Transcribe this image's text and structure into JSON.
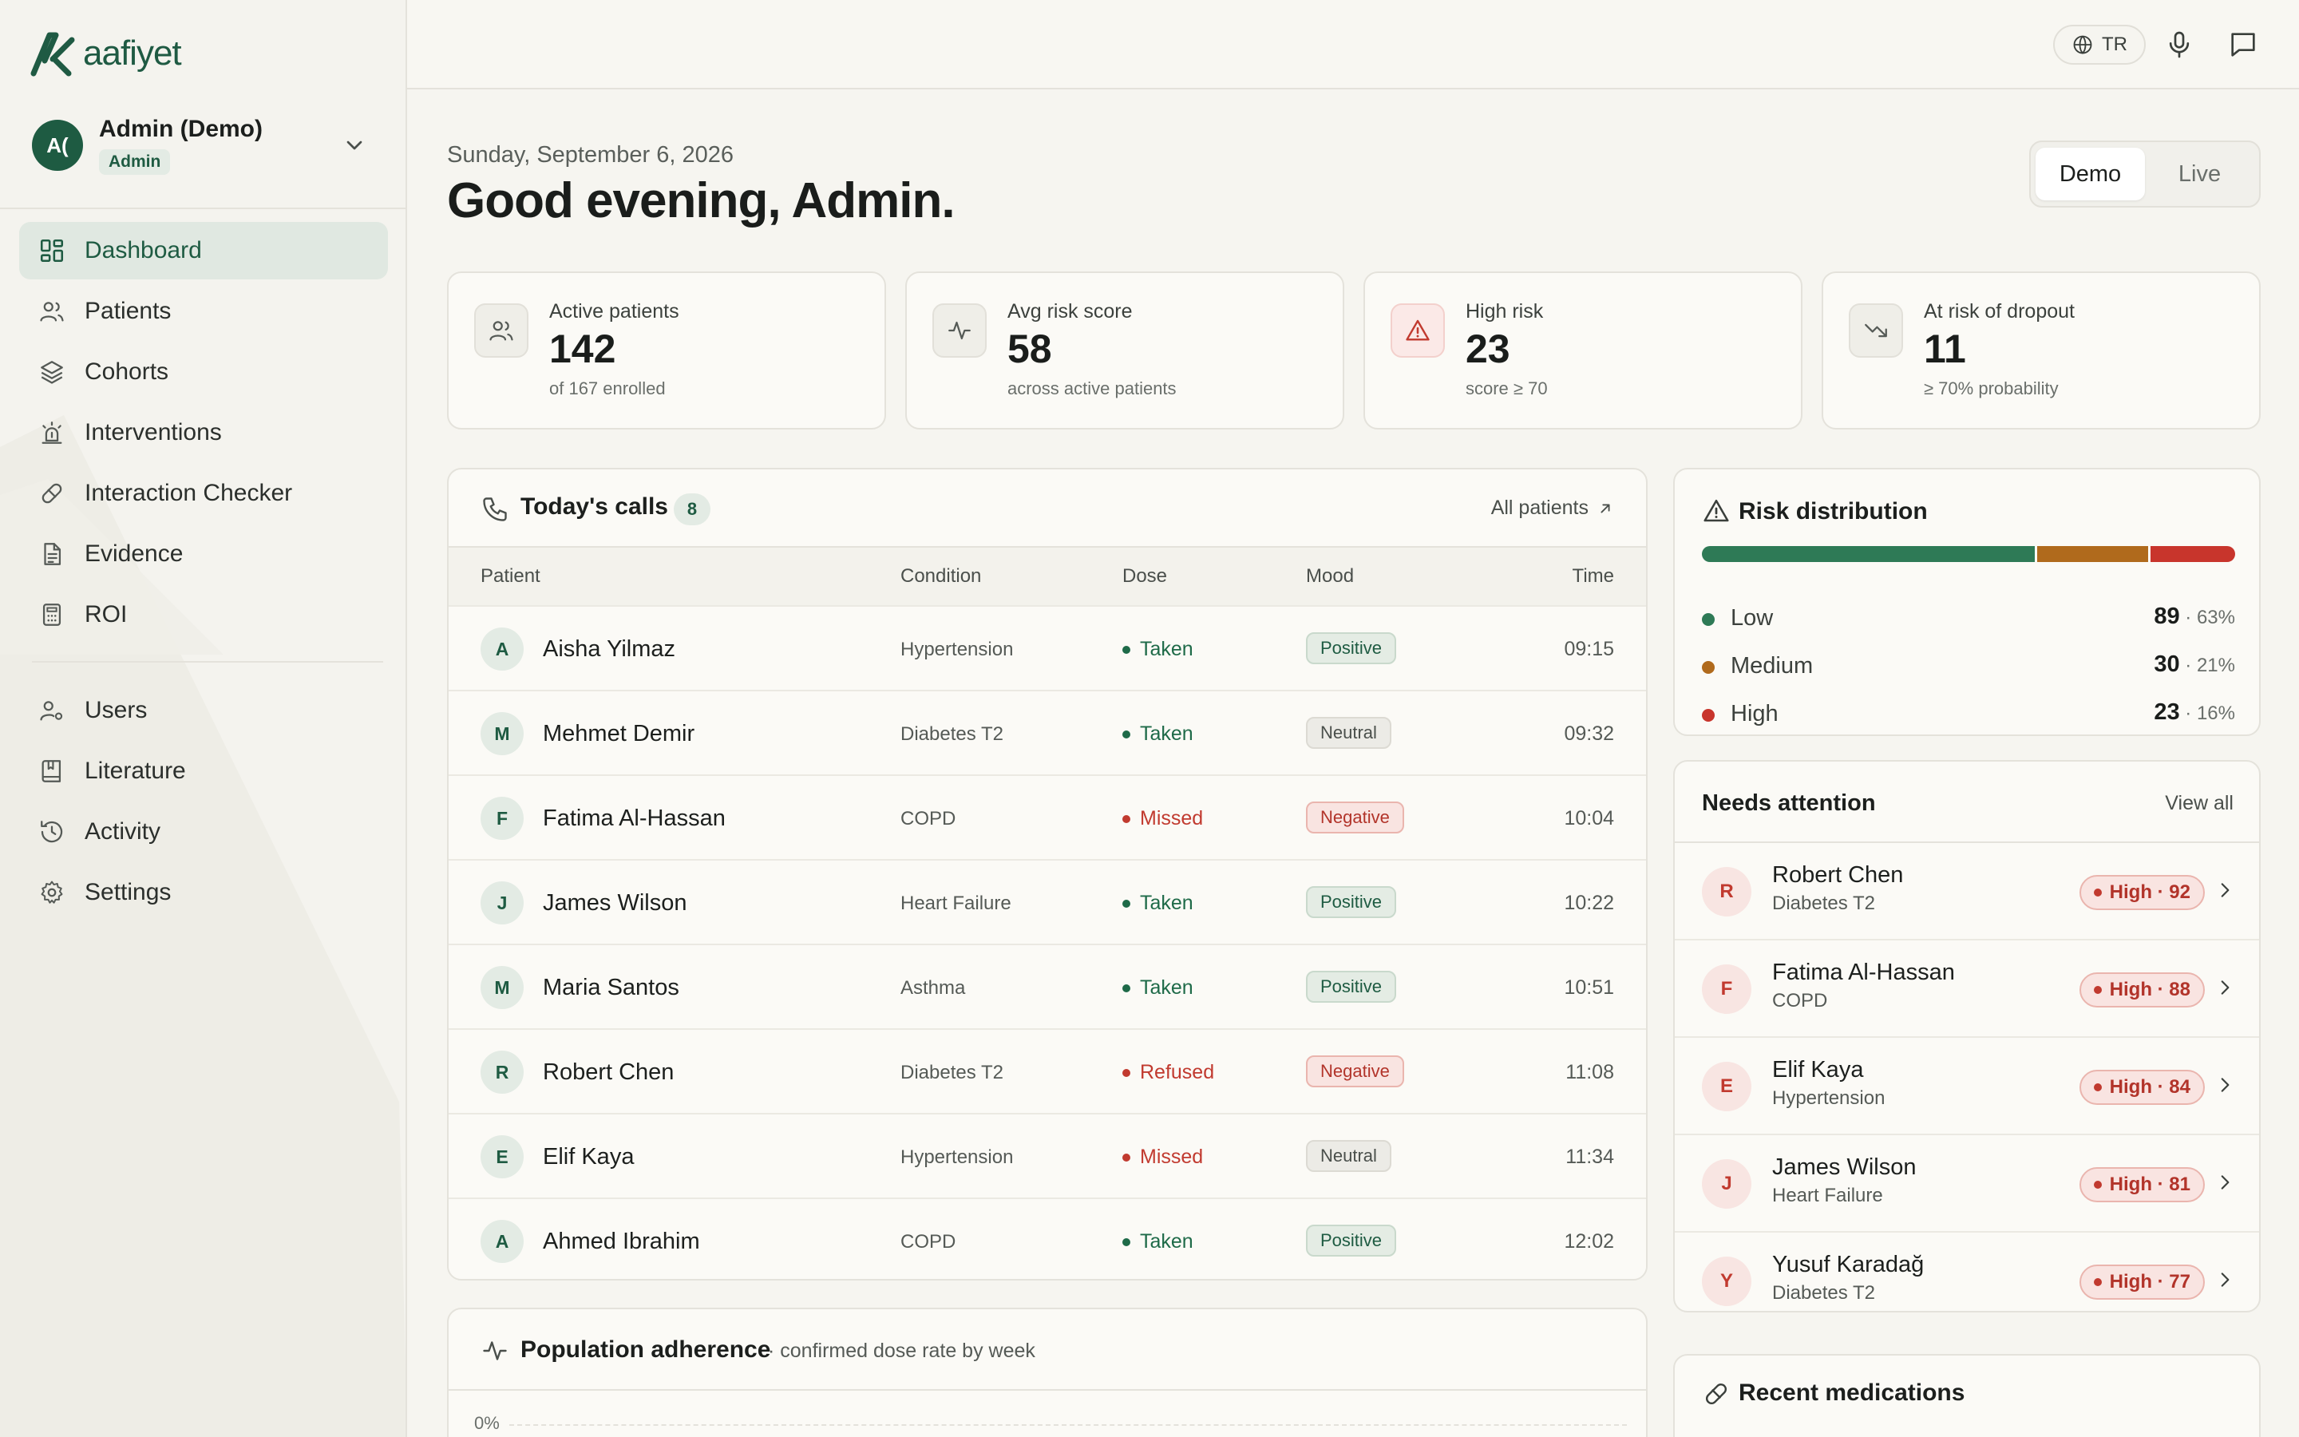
{
  "app": {
    "brand_name": "aafiyet",
    "user": {
      "initials": "A(",
      "name": "Admin (Demo)",
      "role": "Admin"
    }
  },
  "sidebar": {
    "items": [
      {
        "label": "Dashboard",
        "icon": "dashboard-icon",
        "active": true
      },
      {
        "label": "Patients",
        "icon": "users-icon"
      },
      {
        "label": "Cohorts",
        "icon": "layers-icon"
      },
      {
        "label": "Interventions",
        "icon": "alarm-icon"
      },
      {
        "label": "Interaction Checker",
        "icon": "pill-icon"
      },
      {
        "label": "Evidence",
        "icon": "document-icon"
      },
      {
        "label": "ROI",
        "icon": "calculator-icon"
      }
    ],
    "secondary_items": [
      {
        "label": "Users",
        "icon": "user-settings-icon"
      },
      {
        "label": "Literature",
        "icon": "book-icon"
      },
      {
        "label": "Activity",
        "icon": "history-icon"
      },
      {
        "label": "Settings",
        "icon": "gear-icon"
      }
    ]
  },
  "topbar": {
    "language": "TR"
  },
  "header": {
    "date": "Sunday, September 6, 2026",
    "greeting": "Good evening, Admin.",
    "modes": [
      "Demo",
      "Live"
    ],
    "active_mode": "Demo"
  },
  "stats": [
    {
      "label": "Active patients",
      "value": "142",
      "sub": "of 167 enrolled",
      "icon": "users-icon"
    },
    {
      "label": "Avg risk score",
      "value": "58",
      "sub": "across active patients",
      "icon": "activity-icon"
    },
    {
      "label": "High risk",
      "value": "23",
      "sub": "score ≥ 70",
      "icon": "warning-icon"
    },
    {
      "label": "At risk of dropout",
      "value": "11",
      "sub": "≥ 70% probability",
      "icon": "trending-down-icon"
    }
  ],
  "calls": {
    "title": "Today's calls",
    "count": "8",
    "link": "All patients",
    "columns": [
      "Patient",
      "Condition",
      "Dose",
      "Mood",
      "Time"
    ],
    "rows": [
      {
        "initial": "A",
        "name": "Aisha Yilmaz",
        "condition": "Hypertension",
        "dose": "Taken",
        "mood": "Positive",
        "time": "09:15"
      },
      {
        "initial": "M",
        "name": "Mehmet Demir",
        "condition": "Diabetes T2",
        "dose": "Taken",
        "mood": "Neutral",
        "time": "09:32"
      },
      {
        "initial": "F",
        "name": "Fatima Al-Hassan",
        "condition": "COPD",
        "dose": "Missed",
        "mood": "Negative",
        "time": "10:04"
      },
      {
        "initial": "J",
        "name": "James Wilson",
        "condition": "Heart Failure",
        "dose": "Taken",
        "mood": "Positive",
        "time": "10:22"
      },
      {
        "initial": "M",
        "name": "Maria Santos",
        "condition": "Asthma",
        "dose": "Taken",
        "mood": "Positive",
        "time": "10:51"
      },
      {
        "initial": "R",
        "name": "Robert Chen",
        "condition": "Diabetes T2",
        "dose": "Refused",
        "mood": "Negative",
        "time": "11:08"
      },
      {
        "initial": "E",
        "name": "Elif Kaya",
        "condition": "Hypertension",
        "dose": "Missed",
        "mood": "Neutral",
        "time": "11:34"
      },
      {
        "initial": "A",
        "name": "Ahmed Ibrahim",
        "condition": "COPD",
        "dose": "Taken",
        "mood": "Positive",
        "time": "12:02"
      }
    ]
  },
  "adherence": {
    "title": "Population adherence",
    "subtitle": "· confirmed dose rate by week",
    "first_tick": "0%"
  },
  "risk": {
    "title": "Risk distribution",
    "levels": [
      {
        "label": "Low",
        "count": "89",
        "pct": "63%",
        "fraction": 0.63,
        "color": "#2e7a56"
      },
      {
        "label": "Medium",
        "count": "30",
        "pct": "21%",
        "fraction": 0.21,
        "color": "#b06a1c"
      },
      {
        "label": "High",
        "count": "23",
        "pct": "16%",
        "fraction": 0.16,
        "color": "#c8352c"
      }
    ]
  },
  "attention": {
    "title": "Needs attention",
    "link": "View all",
    "items": [
      {
        "initial": "R",
        "name": "Robert Chen",
        "condition": "Diabetes T2",
        "badge": "High · 92"
      },
      {
        "initial": "F",
        "name": "Fatima Al-Hassan",
        "condition": "COPD",
        "badge": "High · 88"
      },
      {
        "initial": "E",
        "name": "Elif Kaya",
        "condition": "Hypertension",
        "badge": "High · 84"
      },
      {
        "initial": "J",
        "name": "James Wilson",
        "condition": "Heart Failure",
        "badge": "High · 81"
      },
      {
        "initial": "Y",
        "name": "Yusuf Karadağ",
        "condition": "Diabetes T2",
        "badge": "High · 77"
      }
    ]
  },
  "medications": {
    "title": "Recent medications"
  },
  "colors": {
    "brand": "#1e5b42",
    "taken": "#1e6a48",
    "missed": "#c13a2f",
    "background": "#f6f5f0"
  }
}
